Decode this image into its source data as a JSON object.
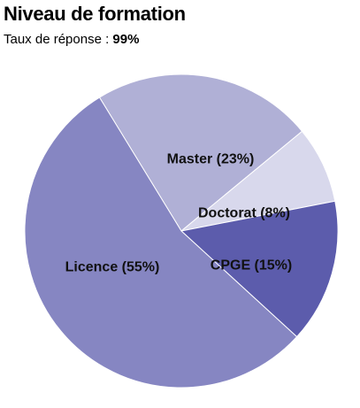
{
  "header": {
    "title": "Niveau de formation",
    "subtitle_prefix": "Taux de réponse : ",
    "response_rate": "99%"
  },
  "chart_data": {
    "type": "pie",
    "title": "Niveau de formation",
    "slices": [
      {
        "name": "Master",
        "value": 23,
        "label": "Master (23%)",
        "color": "#b0b0d6"
      },
      {
        "name": "Doctorat",
        "value": 8,
        "label": "Doctorat (8%)",
        "color": "#d8d8ec"
      },
      {
        "name": "CPGE",
        "value": 15,
        "label": "CPGE (15%)",
        "color": "#5c5cac"
      },
      {
        "name": "Licence",
        "value": 55,
        "label": "Licence (55%)",
        "color": "#8686c2"
      }
    ]
  }
}
